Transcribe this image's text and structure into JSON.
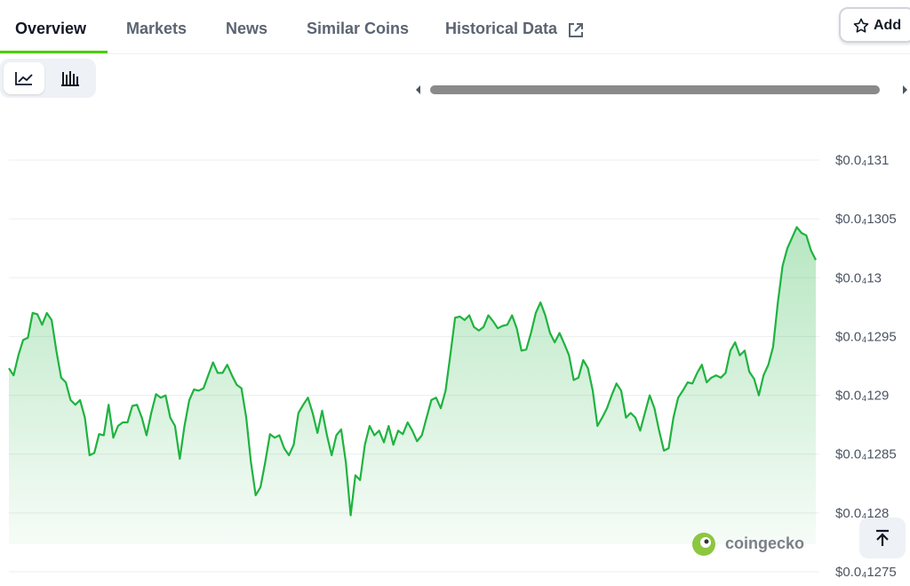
{
  "tabs": [
    "Overview",
    "Markets",
    "News",
    "Similar Coins",
    "Historical Data"
  ],
  "add_button": "Add",
  "watermark": "coingecko",
  "chart_data": {
    "type": "area",
    "color": "#1fb33f",
    "values": [
      1.2923e-05,
      1.2917e-05,
      1.2934e-05,
      1.2947e-05,
      1.2949e-05,
      1.297e-05,
      1.2969e-05,
      1.296e-05,
      1.297e-05,
      1.2964e-05,
      1.2938e-05,
      1.2915e-05,
      1.2911e-05,
      1.2896e-05,
      1.2892e-05,
      1.2896e-05,
      1.2881e-05,
      1.2849e-05,
      1.2851e-05,
      1.2867e-05,
      1.2866e-05,
      1.2892e-05,
      1.2864e-05,
      1.2874e-05,
      1.2877e-05,
      1.2877e-05,
      1.2891e-05,
      1.2892e-05,
      1.2881e-05,
      1.2866e-05,
      1.2885e-05,
      1.2901e-05,
      1.2898e-05,
      1.29e-05,
      1.2881e-05,
      1.2874e-05,
      1.2846e-05,
      1.2874e-05,
      1.2896e-05,
      1.2905e-05,
      1.2904e-05,
      1.2906e-05,
      1.2917e-05,
      1.2928e-05,
      1.2919e-05,
      1.2919e-05,
      1.2926e-05,
      1.2917e-05,
      1.2909e-05,
      1.2906e-05,
      1.2881e-05,
      1.2843e-05,
      1.2815e-05,
      1.2822e-05,
      1.2843e-05,
      1.2867e-05,
      1.2864e-05,
      1.2866e-05,
      1.2855e-05,
      1.2849e-05,
      1.2858e-05,
      1.2885e-05,
      1.2892e-05,
      1.2898e-05,
      1.2885e-05,
      1.2868e-05,
      1.2887e-05,
      1.2866e-05,
      1.2849e-05,
      1.2866e-05,
      1.2871e-05,
      1.2843e-05,
      1.2798e-05,
      1.2832e-05,
      1.2828e-05,
      1.2858e-05,
      1.2874e-05,
      1.2866e-05,
      1.287e-05,
      1.286e-05,
      1.2874e-05,
      1.2858e-05,
      1.287e-05,
      1.2867e-05,
      1.2877e-05,
      1.287e-05,
      1.2861e-05,
      1.2866e-05,
      1.2881e-05,
      1.2896e-05,
      1.2898e-05,
      1.2889e-05,
      1.2904e-05,
      1.2934e-05,
      1.2966e-05,
      1.2967e-05,
      1.2964e-05,
      1.2968e-05,
      1.2958e-05,
      1.2955e-05,
      1.2958e-05,
      1.2968e-05,
      1.2963e-05,
      1.2957e-05,
      1.2959e-05,
      1.296e-05,
      1.2968e-05,
      1.2957e-05,
      1.2938e-05,
      1.2939e-05,
      1.2953e-05,
      1.297e-05,
      1.2979e-05,
      1.2968e-05,
      1.2953e-05,
      1.2945e-05,
      1.2953e-05,
      1.2944e-05,
      1.2934e-05,
      1.2913e-05,
      1.2915e-05,
      1.293e-05,
      1.2923e-05,
      1.2904e-05,
      1.2874e-05,
      1.2881e-05,
      1.2889e-05,
      1.29e-05,
      1.291e-05,
      1.2904e-05,
      1.2881e-05,
      1.2885e-05,
      1.2881e-05,
      1.287e-05,
      1.2885e-05,
      1.29e-05,
      1.2889e-05,
      1.287e-05,
      1.2853e-05,
      1.2855e-05,
      1.2881e-05,
      1.2898e-05,
      1.2904e-05,
      1.2911e-05,
      1.291e-05,
      1.2919e-05,
      1.2926e-05,
      1.2911e-05,
      1.2915e-05,
      1.2917e-05,
      1.2915e-05,
      1.2919e-05,
      1.2938e-05,
      1.2945e-05,
      1.2934e-05,
      1.2938e-05,
      1.292e-05,
      1.2914e-05,
      1.29e-05,
      1.2917e-05,
      1.2926e-05,
      1.2941e-05,
      1.2979e-05,
      1.301e-05,
      1.3025e-05,
      1.3034e-05,
      1.3043e-05,
      1.3038e-05,
      1.3036e-05,
      1.3023e-05,
      1.3015e-05
    ],
    "ylim": [
      1.275e-05,
      1.31e-05
    ],
    "yticks": [
      {
        "value": 1.31e-05,
        "label": "$0.0₄131"
      },
      {
        "value": 1.305e-05,
        "label": "$0.0₄1305"
      },
      {
        "value": 1.3e-05,
        "label": "$0.0₄13"
      },
      {
        "value": 1.295e-05,
        "label": "$0.0₄1295"
      },
      {
        "value": 1.29e-05,
        "label": "$0.0₄129"
      },
      {
        "value": 1.285e-05,
        "label": "$0.0₄1285"
      },
      {
        "value": 1.28e-05,
        "label": "$0.0₄128"
      },
      {
        "value": 1.275e-05,
        "label": "$0.0₄1275"
      }
    ],
    "grid": true
  }
}
